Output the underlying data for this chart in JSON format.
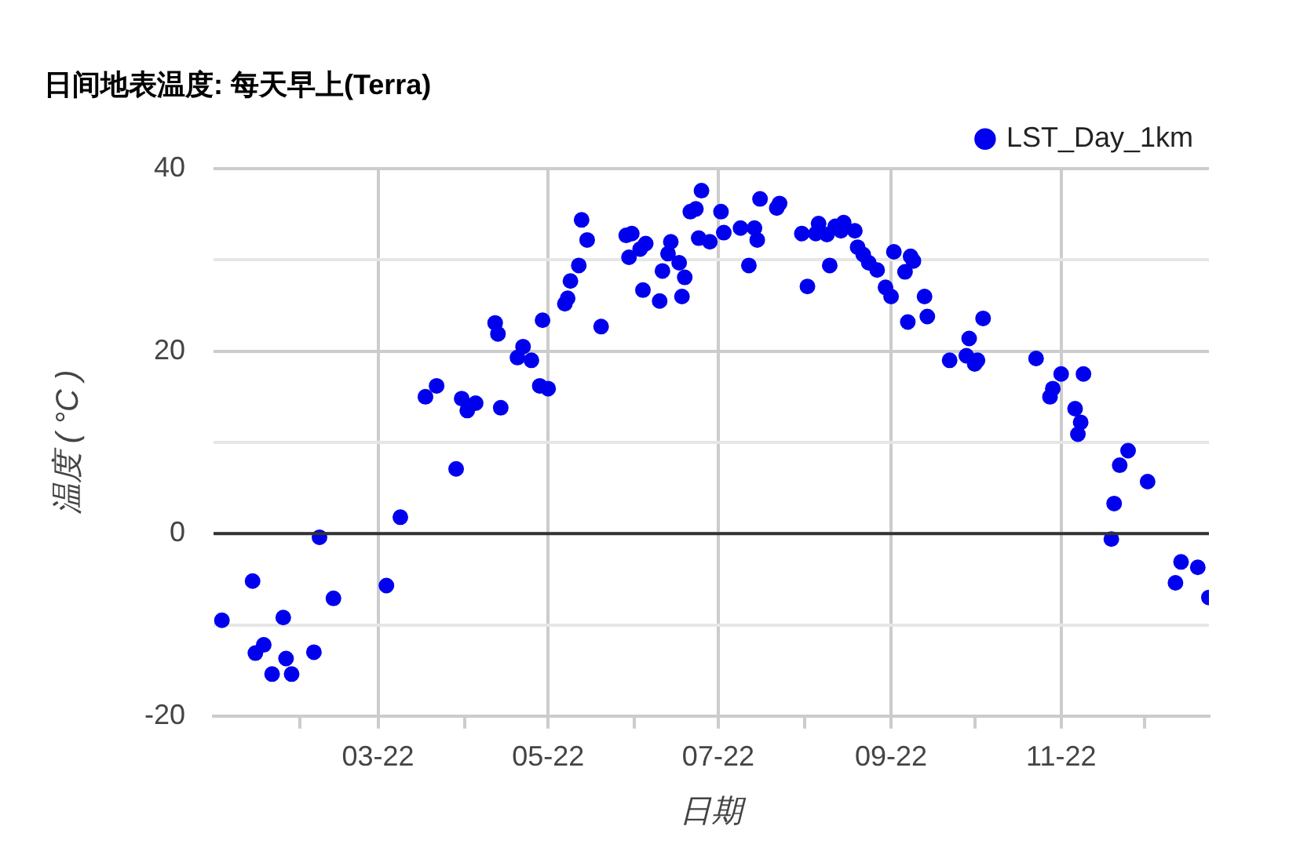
{
  "chart_data": {
    "type": "scatter",
    "title": "日间地表温度: 每天早上(Terra)",
    "xlabel": "日期",
    "ylabel": "温度 ( °C )",
    "series": [
      {
        "name": "LST_Day_1km",
        "color": "#0000ee",
        "x": [
          "2022-01-04",
          "2022-01-15",
          "2022-01-26",
          "2022-01-16",
          "2022-01-19",
          "2022-01-22",
          "2022-01-27",
          "2022-01-29",
          "2022-02-06",
          "2022-02-08",
          "2022-02-13",
          "2022-03-04",
          "2022-03-09",
          "2022-03-29",
          "2022-03-18",
          "2022-03-22",
          "2022-03-31",
          "2022-04-02",
          "2022-04-05",
          "2022-04-14",
          "2022-04-12",
          "2022-04-13",
          "2022-04-29",
          "2022-04-22",
          "2022-04-20",
          "2022-04-25",
          "2022-04-28",
          "2022-05-01",
          "2022-05-07",
          "2022-05-08",
          "2022-05-09",
          "2022-05-12",
          "2022-05-13",
          "2022-05-15",
          "2022-05-20",
          "2022-05-29",
          "2022-05-31",
          "2022-05-30",
          "2022-06-03",
          "2022-06-05",
          "2022-06-04",
          "2022-06-10",
          "2022-06-11",
          "2022-06-13",
          "2022-06-14",
          "2022-06-17",
          "2022-06-19",
          "2022-06-18",
          "2022-06-21",
          "2022-06-23",
          "2022-06-25",
          "2022-06-24",
          "2022-06-28",
          "2022-07-02",
          "2022-07-03",
          "2022-07-09",
          "2022-07-14",
          "2022-07-15",
          "2022-07-12",
          "2022-07-16",
          "2022-07-22",
          "2022-07-23",
          "2022-07-31",
          "2022-08-02",
          "2022-08-06",
          "2022-08-05",
          "2022-08-09",
          "2022-08-10",
          "2022-08-12",
          "2022-08-15",
          "2022-08-14",
          "2022-08-19",
          "2022-08-20",
          "2022-08-22",
          "2022-08-24",
          "2022-08-27",
          "2022-08-30",
          "2022-09-02",
          "2022-09-08",
          "2022-09-09",
          "2022-09-06",
          "2022-09-01",
          "2022-09-07",
          "2022-09-13",
          "2022-09-14",
          "2022-09-22",
          "2022-09-29",
          "2022-09-28",
          "2022-10-02",
          "2022-10-01",
          "2022-10-04",
          "2022-10-23",
          "2022-11-01",
          "2022-10-29",
          "2022-10-28",
          "2022-11-09",
          "2022-11-06",
          "2022-11-08",
          "2022-11-07",
          "2022-11-25",
          "2022-11-22",
          "2022-12-02",
          "2022-11-20",
          "2022-11-19",
          "2022-12-14",
          "2022-12-20",
          "2022-12-12",
          "2022-12-24"
        ],
        "values": [
          -9.5,
          -5.2,
          -9.2,
          -13.1,
          -12.2,
          -15.4,
          -13.7,
          -15.4,
          -13.0,
          -0.4,
          -7.1,
          -5.7,
          1.8,
          7.1,
          15.0,
          16.2,
          14.8,
          13.5,
          14.3,
          13.8,
          23.1,
          21.9,
          23.4,
          20.5,
          19.3,
          19.0,
          16.2,
          15.9,
          25.2,
          25.8,
          27.7,
          29.4,
          34.4,
          32.2,
          22.7,
          32.7,
          32.9,
          30.3,
          31.2,
          31.8,
          26.7,
          25.5,
          28.8,
          30.7,
          32.0,
          29.7,
          28.1,
          26.0,
          35.3,
          35.6,
          37.6,
          32.4,
          32.0,
          35.3,
          33.0,
          33.5,
          33.5,
          32.2,
          29.4,
          36.7,
          35.7,
          36.2,
          32.9,
          27.1,
          34.0,
          32.9,
          32.8,
          29.4,
          33.7,
          34.1,
          33.2,
          33.2,
          31.4,
          30.6,
          29.7,
          28.9,
          27.0,
          30.9,
          30.4,
          29.9,
          28.7,
          26.0,
          23.2,
          26.0,
          23.8,
          19.0,
          21.4,
          19.5,
          19.0,
          18.6,
          23.6,
          19.2,
          17.5,
          15.9,
          15.0,
          17.5,
          13.7,
          12.2,
          10.9,
          9.1,
          7.5,
          5.7,
          3.3,
          -0.6,
          -3.1,
          -3.7,
          -5.4,
          -7.0
        ]
      }
    ],
    "xlim": [
      "2022-01-01",
      "2022-12-24"
    ],
    "xticks": [
      {
        "value": "2022-02-01",
        "label": null
      },
      {
        "value": "2022-03-01",
        "label": "03-22"
      },
      {
        "value": "2022-04-01",
        "label": null
      },
      {
        "value": "2022-05-01",
        "label": "05-22"
      },
      {
        "value": "2022-06-01",
        "label": null
      },
      {
        "value": "2022-07-01",
        "label": "07-22"
      },
      {
        "value": "2022-08-01",
        "label": null
      },
      {
        "value": "2022-09-01",
        "label": "09-22"
      },
      {
        "value": "2022-10-01",
        "label": null
      },
      {
        "value": "2022-11-01",
        "label": "11-22"
      },
      {
        "value": "2022-12-01",
        "label": null
      }
    ],
    "ylim": [
      -20,
      40
    ],
    "yticks": [
      -20,
      {
        "value": -10,
        "label": null
      },
      0,
      {
        "value": 10,
        "label": null
      },
      20,
      {
        "value": 30,
        "label": null
      },
      40
    ],
    "ref_lines": [
      {
        "axis": "y",
        "value": 0,
        "color": "#333333"
      }
    ],
    "grid": true,
    "legend": "top right",
    "marker": "circle"
  }
}
